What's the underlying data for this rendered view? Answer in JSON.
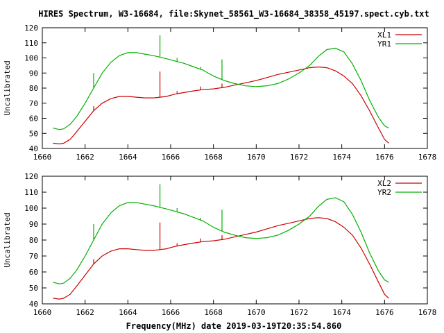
{
  "title": "HIRES Spectrum, W3-16684, file:Skynet_58561_W3-16684_38358_45197.spect.cyb.txt",
  "footer_label": "Frequency(MHz) date 2019-03-19T20:35:54.860",
  "colors": {
    "red": "#cc0000",
    "green": "#00b000",
    "axis": "#000000",
    "background": "#ffffff"
  },
  "chart_data": [
    {
      "type": "line",
      "ylabel": "Uncalibrated",
      "xlabel": "",
      "xlim": [
        1660,
        1678
      ],
      "ylim": [
        40,
        120
      ],
      "x_ticks": [
        "1660",
        "1662",
        "1664",
        "1666",
        "1668",
        "1670",
        "1672",
        "1674",
        "1676",
        "1678"
      ],
      "y_ticks": [
        "40",
        "50",
        "60",
        "70",
        "80",
        "90",
        "100",
        "110",
        "120"
      ],
      "legend_position": "top-right",
      "series": [
        {
          "name": "XL1",
          "color": "#cc0000",
          "x": [
            1660.5,
            1660.8,
            1661.0,
            1661.3,
            1661.6,
            1662.0,
            1662.4,
            1662.8,
            1663.2,
            1663.6,
            1664.0,
            1664.4,
            1664.8,
            1665.2,
            1665.5,
            1665.8,
            1666.2,
            1666.6,
            1667.0,
            1667.5,
            1668.0,
            1668.5,
            1669.0,
            1669.5,
            1670.0,
            1670.5,
            1671.0,
            1671.5,
            1672.0,
            1672.5,
            1672.9,
            1673.3,
            1673.7,
            1674.1,
            1674.5,
            1674.9,
            1675.3,
            1675.7,
            1676.0,
            1676.2
          ],
          "y": [
            43.5,
            43,
            43.5,
            46,
            51,
            58,
            65,
            70,
            73,
            74.5,
            74.5,
            74,
            73.5,
            73.5,
            74,
            74.5,
            76,
            77,
            78,
            79,
            79.5,
            80.5,
            82,
            83.5,
            85,
            87,
            89,
            90.5,
            92,
            93.5,
            94,
            93.5,
            91.5,
            88,
            83,
            75,
            65,
            54,
            46,
            43.5
          ],
          "spikes": [
            {
              "x": 1662.4,
              "y": 68
            },
            {
              "x": 1665.5,
              "y": 91
            },
            {
              "x": 1666.3,
              "y": 78
            },
            {
              "x": 1667.4,
              "y": 81
            },
            {
              "x": 1668.4,
              "y": 83
            }
          ]
        },
        {
          "name": "YR1",
          "color": "#00b000",
          "x": [
            1660.5,
            1660.8,
            1661.0,
            1661.3,
            1661.6,
            1662.0,
            1662.4,
            1662.8,
            1663.2,
            1663.6,
            1664.0,
            1664.4,
            1664.8,
            1665.2,
            1665.5,
            1665.8,
            1666.2,
            1666.6,
            1667.0,
            1667.5,
            1668.0,
            1668.5,
            1669.0,
            1669.5,
            1670.0,
            1670.5,
            1671.0,
            1671.5,
            1672.0,
            1672.5,
            1672.9,
            1673.3,
            1673.7,
            1674.1,
            1674.5,
            1674.9,
            1675.3,
            1675.7,
            1676.0,
            1676.2
          ],
          "y": [
            53.5,
            52.5,
            53,
            56,
            61,
            70,
            80,
            90,
            97,
            101.5,
            103.5,
            103.5,
            102.5,
            101.5,
            100.5,
            99.5,
            98,
            96.5,
            94.5,
            92,
            88,
            85,
            83,
            81.5,
            81,
            81.5,
            83,
            86,
            90,
            95,
            101,
            105.5,
            106.5,
            104,
            96,
            85,
            72,
            61,
            55,
            53.5
          ],
          "spikes": [
            {
              "x": 1662.4,
              "y": 90
            },
            {
              "x": 1665.5,
              "y": 115
            },
            {
              "x": 1666.3,
              "y": 100
            },
            {
              "x": 1667.4,
              "y": 94
            },
            {
              "x": 1668.4,
              "y": 99
            }
          ]
        }
      ]
    },
    {
      "type": "line",
      "ylabel": "Uncalibrated",
      "xlabel": "Frequency(MHz) date 2019-03-19T20:35:54.860",
      "xlim": [
        1660,
        1678
      ],
      "ylim": [
        40,
        120
      ],
      "x_ticks": [
        "1660",
        "1662",
        "1664",
        "1666",
        "1668",
        "1670",
        "1672",
        "1674",
        "1676",
        "1678"
      ],
      "y_ticks": [
        "40",
        "50",
        "60",
        "70",
        "80",
        "90",
        "100",
        "110",
        "120"
      ],
      "legend_position": "top-right",
      "series": [
        {
          "name": "XL2",
          "color": "#cc0000",
          "x": [
            1660.5,
            1660.8,
            1661.0,
            1661.3,
            1661.6,
            1662.0,
            1662.4,
            1662.8,
            1663.2,
            1663.6,
            1664.0,
            1664.4,
            1664.8,
            1665.2,
            1665.5,
            1665.8,
            1666.2,
            1666.6,
            1667.0,
            1667.5,
            1668.0,
            1668.5,
            1669.0,
            1669.5,
            1670.0,
            1670.5,
            1671.0,
            1671.5,
            1672.0,
            1672.5,
            1672.9,
            1673.3,
            1673.7,
            1674.1,
            1674.5,
            1674.9,
            1675.3,
            1675.7,
            1676.0,
            1676.2
          ],
          "y": [
            43.5,
            43,
            43.5,
            46,
            51,
            58,
            65,
            70,
            73,
            74.5,
            74.5,
            74,
            73.5,
            73.5,
            74,
            74.5,
            76,
            77,
            78,
            79,
            79.5,
            80.5,
            82,
            83.5,
            85,
            87,
            89,
            90.5,
            92,
            93.5,
            94,
            93.5,
            91.5,
            88,
            83,
            75,
            65,
            54,
            46,
            43.5
          ],
          "spikes": [
            {
              "x": 1662.4,
              "y": 68
            },
            {
              "x": 1665.5,
              "y": 91
            },
            {
              "x": 1666.3,
              "y": 78
            },
            {
              "x": 1667.4,
              "y": 81
            },
            {
              "x": 1668.4,
              "y": 83
            }
          ]
        },
        {
          "name": "YR2",
          "color": "#00b000",
          "x": [
            1660.5,
            1660.8,
            1661.0,
            1661.3,
            1661.6,
            1662.0,
            1662.4,
            1662.8,
            1663.2,
            1663.6,
            1664.0,
            1664.4,
            1664.8,
            1665.2,
            1665.5,
            1665.8,
            1666.2,
            1666.6,
            1667.0,
            1667.5,
            1668.0,
            1668.5,
            1669.0,
            1669.5,
            1670.0,
            1670.5,
            1671.0,
            1671.5,
            1672.0,
            1672.5,
            1672.9,
            1673.3,
            1673.7,
            1674.1,
            1674.5,
            1674.9,
            1675.3,
            1675.7,
            1676.0,
            1676.2
          ],
          "y": [
            53.5,
            52.5,
            53,
            56,
            61,
            70,
            80,
            90,
            97,
            101.5,
            103.5,
            103.5,
            102.5,
            101.5,
            100.5,
            99.5,
            98,
            96.5,
            94.5,
            92,
            88,
            85,
            83,
            81.5,
            81,
            81.5,
            83,
            86,
            90,
            95,
            101,
            105.5,
            106.5,
            104,
            96,
            85,
            72,
            61,
            55,
            53.5
          ],
          "spikes": [
            {
              "x": 1662.4,
              "y": 90
            },
            {
              "x": 1665.5,
              "y": 115
            },
            {
              "x": 1666.3,
              "y": 100
            },
            {
              "x": 1667.4,
              "y": 94
            },
            {
              "x": 1668.4,
              "y": 99
            }
          ]
        }
      ]
    }
  ]
}
